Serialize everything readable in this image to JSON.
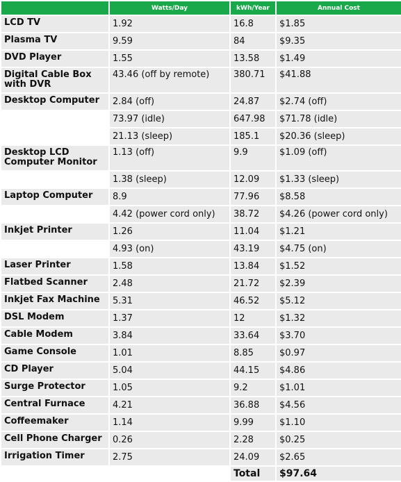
{
  "table": {
    "headers": [
      "",
      "Watts/Day",
      "kWh/Year",
      "Annual Cost"
    ],
    "rows": [
      {
        "name": "LCD TV",
        "watts": "1.92",
        "kwh": "16.8",
        "cost": "$1.85"
      },
      {
        "name": "Plasma TV",
        "watts": "9.59",
        "kwh": "84",
        "cost": "$9.35"
      },
      {
        "name": "DVD Player",
        "watts": "1.55",
        "kwh": "13.58",
        "cost": "$1.49"
      },
      {
        "name": "Digital Cable Box with DVR",
        "watts": "43.46 (off by remote)",
        "kwh": "380.71",
        "cost": "$41.88"
      },
      {
        "name": "Desktop Computer",
        "watts": "2.84 (off)",
        "kwh": "24.87",
        "cost": "$2.74 (off)"
      },
      {
        "name": "",
        "watts": "73.97 (idle)",
        "kwh": "647.98",
        "cost": "$71.78 (idle)"
      },
      {
        "name": "",
        "watts": "21.13 (sleep)",
        "kwh": "185.1",
        "cost": "$20.36 (sleep)"
      },
      {
        "name": "Desktop LCD Computer Monitor",
        "watts": "1.13 (off)",
        "kwh": "9.9",
        "cost": "$1.09 (off)"
      },
      {
        "name": "",
        "watts": "1.38 (sleep)",
        "kwh": "12.09",
        "cost": "$1.33 (sleep)"
      },
      {
        "name": "Laptop Computer",
        "watts": "8.9",
        "kwh": "77.96",
        "cost": "$8.58"
      },
      {
        "name": "",
        "watts": "4.42 (power cord only)",
        "kwh": "38.72",
        "cost": "$4.26 (power cord only)"
      },
      {
        "name": "Inkjet Printer",
        "watts": "1.26",
        "kwh": "11.04",
        "cost": "$1.21"
      },
      {
        "name": "",
        "watts": "4.93 (on)",
        "kwh": "43.19",
        "cost": "$4.75 (on)"
      },
      {
        "name": "Laser Printer",
        "watts": "1.58",
        "kwh": "13.84",
        "cost": "$1.52"
      },
      {
        "name": "Flatbed Scanner",
        "watts": "2.48",
        "kwh": "21.72",
        "cost": "$2.39"
      },
      {
        "name": "Inkjet Fax Machine",
        "watts": "5.31",
        "kwh": "46.52",
        "cost": "$5.12"
      },
      {
        "name": "DSL Modem",
        "watts": "1.37",
        "kwh": "12",
        "cost": "$1.32"
      },
      {
        "name": "Cable Modem",
        "watts": "3.84",
        "kwh": "33.64",
        "cost": "$3.70"
      },
      {
        "name": "Game Console",
        "watts": "1.01",
        "kwh": "8.85",
        "cost": "$0.97"
      },
      {
        "name": "CD Player",
        "watts": "5.04",
        "kwh": "44.15",
        "cost": "$4.86"
      },
      {
        "name": "Surge Protector",
        "watts": "1.05",
        "kwh": "9.2",
        "cost": "$1.01"
      },
      {
        "name": "Central Furnace",
        "watts": "4.21",
        "kwh": "36.88",
        "cost": "$4.56"
      },
      {
        "name": "Coffeemaker",
        "watts": "1.14",
        "kwh": "9.99",
        "cost": "$1.10"
      },
      {
        "name": "Cell Phone Charger",
        "watts": "0.26",
        "kwh": "2.28",
        "cost": "$0.25"
      },
      {
        "name": "Irrigation Timer",
        "watts": "2.75",
        "kwh": "24.09",
        "cost": "$2.65"
      }
    ],
    "total": {
      "label": "Total",
      "value": "$97.64"
    }
  },
  "colors": {
    "header": "#19a84a",
    "row": "#eaeaea",
    "text": "#111111"
  }
}
